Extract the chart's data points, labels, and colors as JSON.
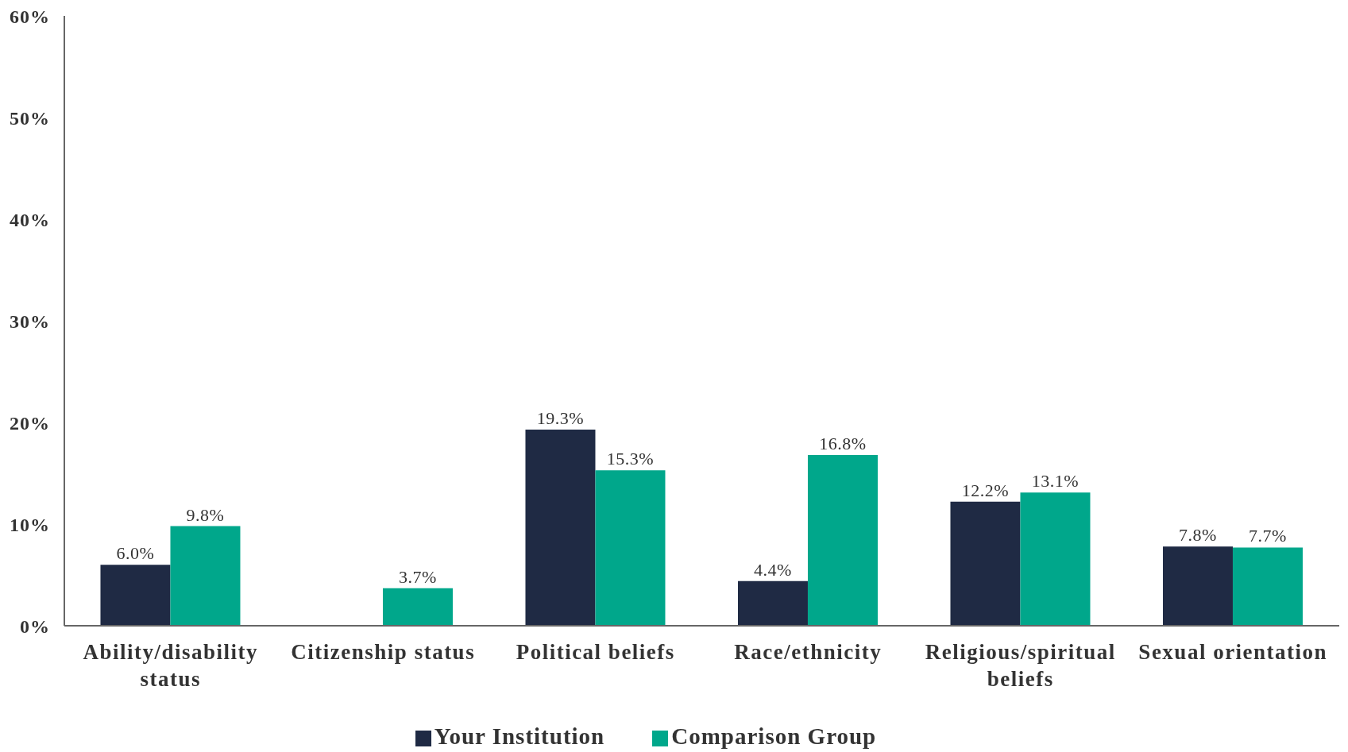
{
  "chart_data": {
    "type": "bar",
    "categories": [
      "Ability/disability status",
      "Citizenship status",
      "Political beliefs",
      "Race/ethnicity",
      "Religious/spiritual beliefs",
      "Sexual orientation"
    ],
    "series": [
      {
        "name": "Your Institution",
        "color": "#1f2a44",
        "values": [
          6.0,
          null,
          19.3,
          4.4,
          12.2,
          7.8
        ],
        "value_labels": [
          "6.0%",
          null,
          "19.3%",
          "4.4%",
          "12.2%",
          "7.8%"
        ]
      },
      {
        "name": "Comparison Group",
        "color": "#00a78b",
        "values": [
          9.8,
          3.7,
          15.3,
          16.8,
          13.1,
          7.7
        ],
        "value_labels": [
          "9.8%",
          "3.7%",
          "15.3%",
          "16.8%",
          "13.1%",
          "7.7%"
        ]
      }
    ],
    "ylim": [
      0,
      60
    ],
    "yticks": [
      {
        "value": 0,
        "label": "0%"
      },
      {
        "value": 10,
        "label": "10%"
      },
      {
        "value": 20,
        "label": "20%"
      },
      {
        "value": 30,
        "label": "30%"
      },
      {
        "value": 40,
        "label": "40%"
      },
      {
        "value": 50,
        "label": "50%"
      },
      {
        "value": 60,
        "label": "60%"
      }
    ],
    "grid": false,
    "legend": "bottom"
  }
}
